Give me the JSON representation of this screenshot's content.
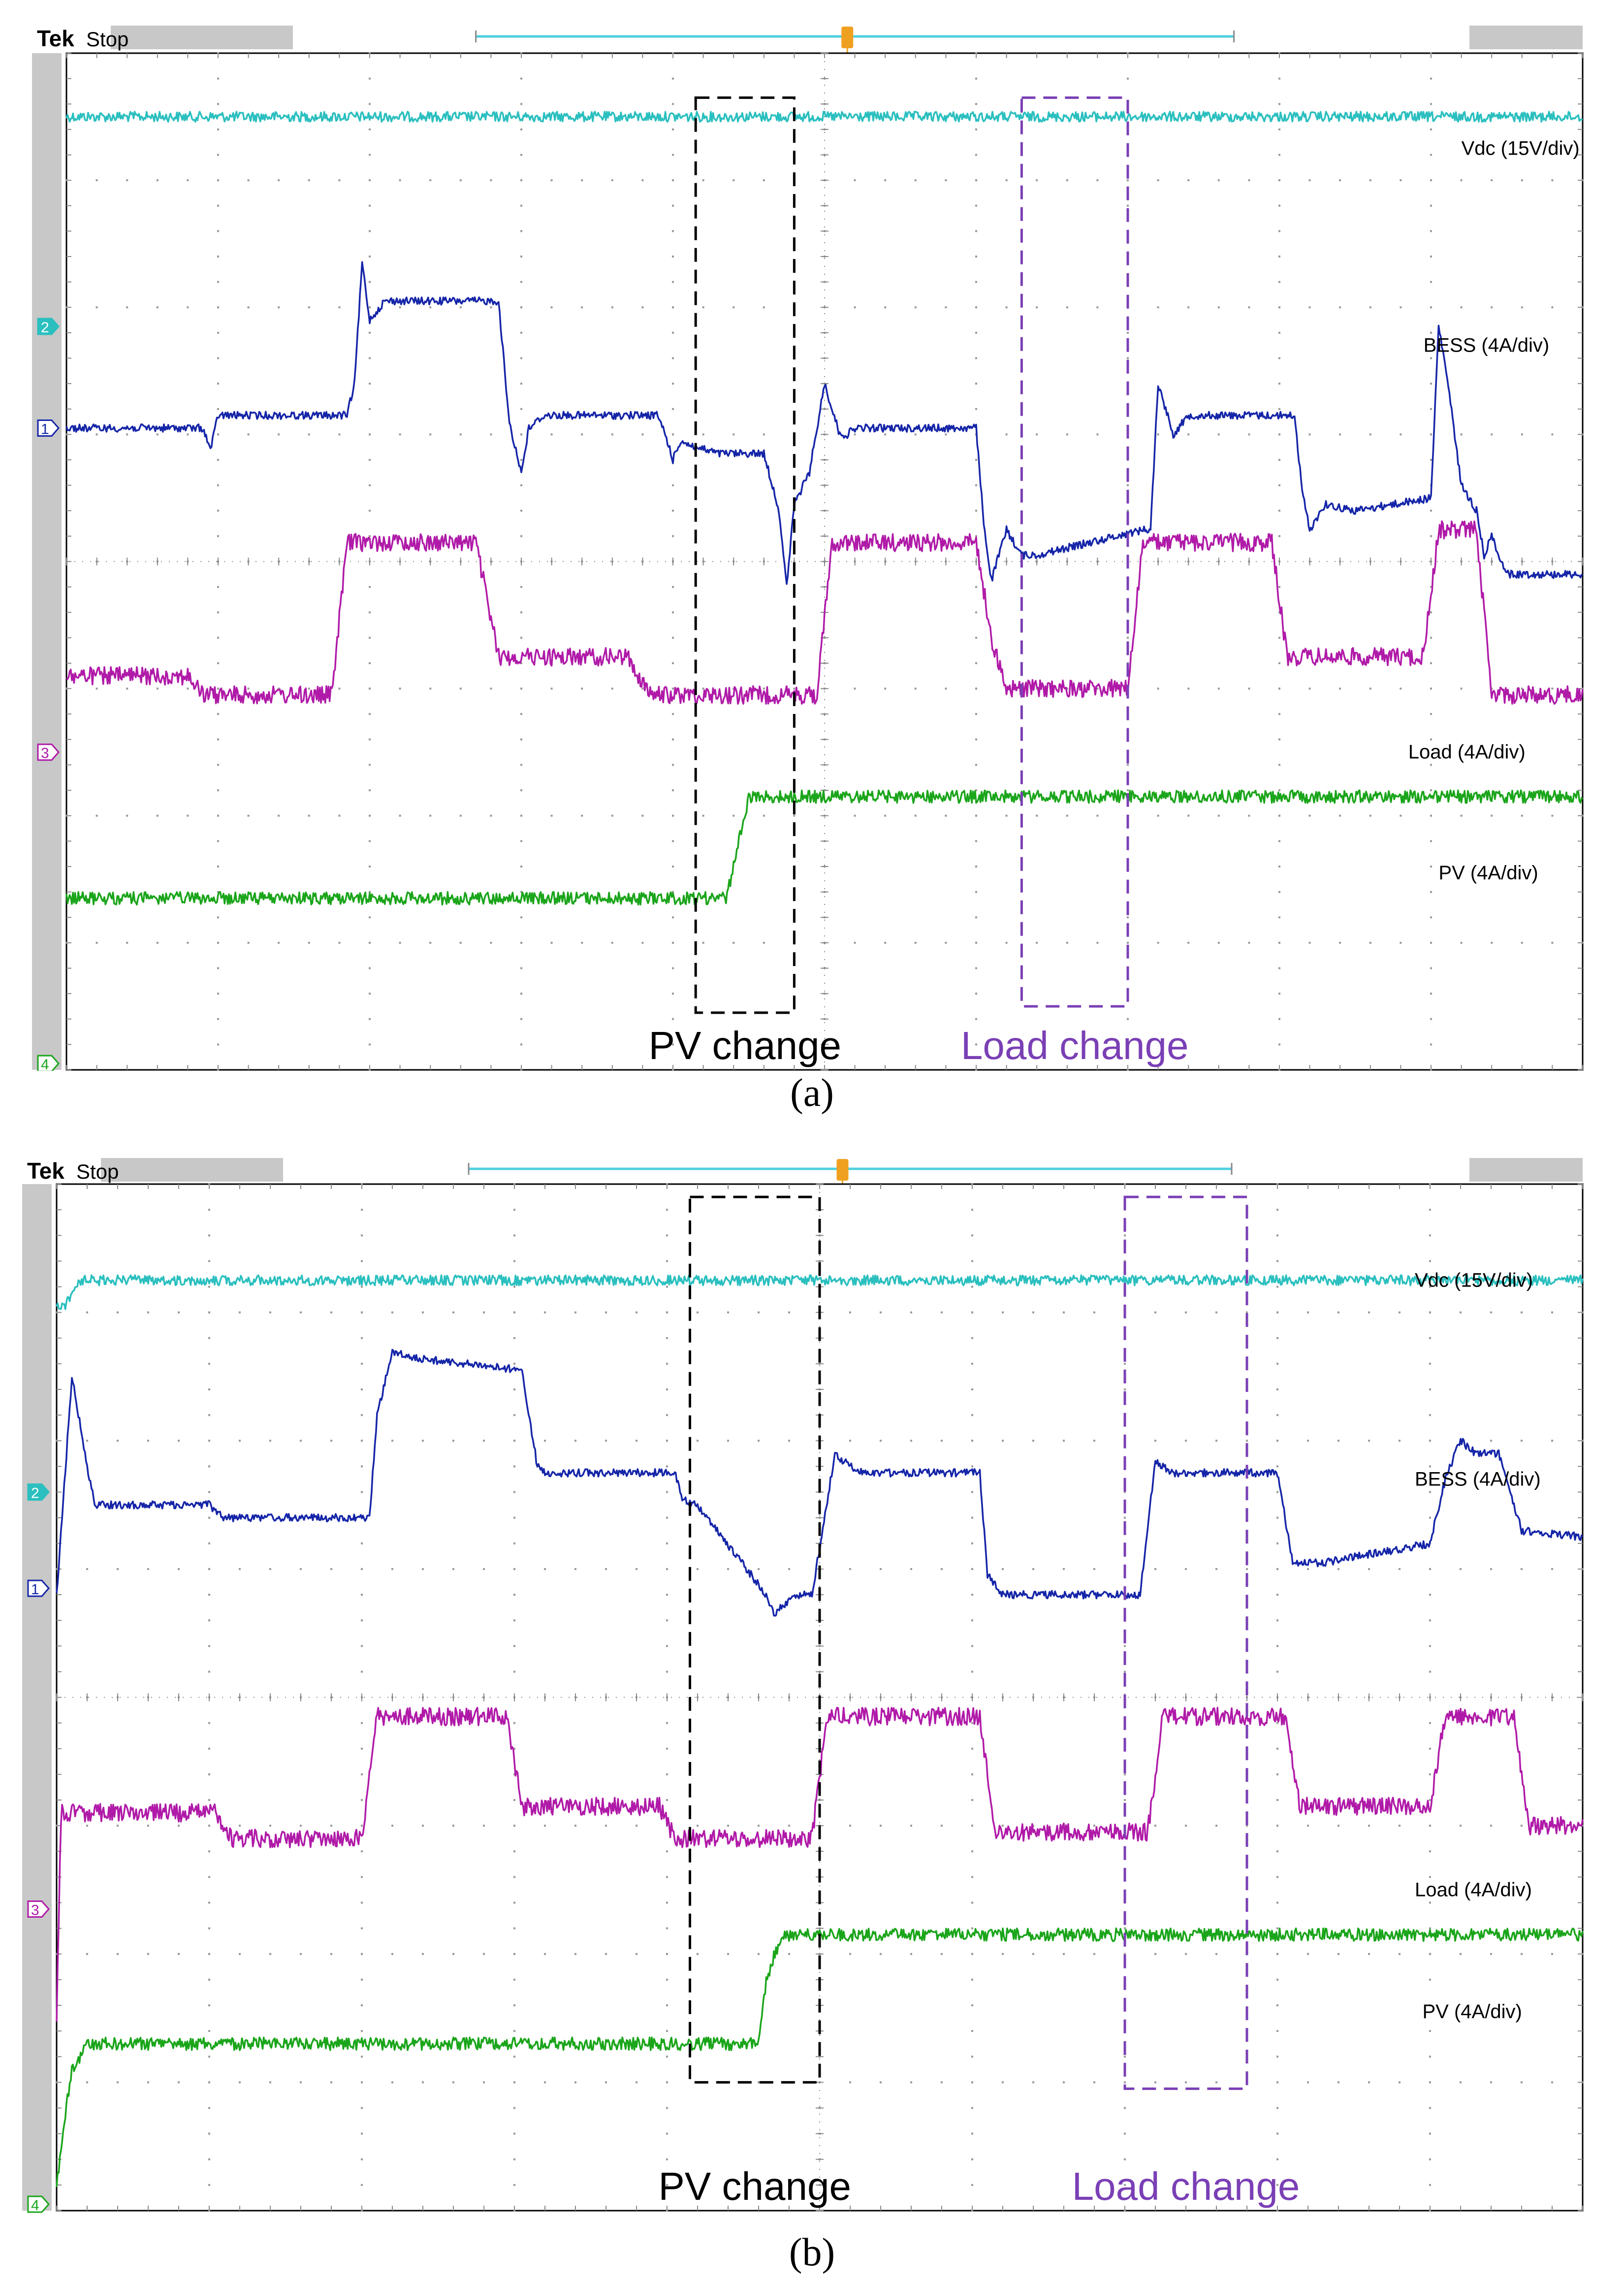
{
  "colors": {
    "vdc": "#2bbfbf",
    "bess": "#1525a8",
    "load": "#b01aa8",
    "pv": "#1aa51a",
    "pv_box": "#000000",
    "load_box": "#7a3fb5",
    "trigger": "#f0a020",
    "timebar": "#4fd0e0"
  },
  "header": {
    "brand": "Tek",
    "status": "Stop"
  },
  "chart_data": [
    {
      "type": "line",
      "caption": "(a)",
      "x_divisions": 10,
      "y_divisions": 8,
      "series": [
        {
          "name": "Vdc (15V/div)",
          "channel_marker": "2",
          "color": "#2bbfbf",
          "x": [
            0,
            10
          ],
          "y": [
            0.5,
            0.5
          ]
        },
        {
          "name": "BESS (4A/div)",
          "channel_marker": "1",
          "color": "#1525a8",
          "x": [
            0,
            0.9,
            0.95,
            1.0,
            1.85,
            1.9,
            1.95,
            2.0,
            2.1,
            2.3,
            2.85,
            2.92,
            3.0,
            3.05,
            3.15,
            3.25,
            3.9,
            3.95,
            4.0,
            4.05,
            4.15,
            4.3,
            4.5,
            4.6,
            4.7,
            4.75,
            4.8,
            4.9,
            5.0,
            5.1,
            5.15,
            5.2,
            5.4,
            6.0,
            6.05,
            6.1,
            6.2,
            6.3,
            6.4,
            7.1,
            7.15,
            7.2,
            7.3,
            7.4,
            7.6,
            8.1,
            8.15,
            8.2,
            8.3,
            8.5,
            9.0,
            9.05,
            9.1,
            9.2,
            9.3,
            9.35,
            9.4,
            9.5,
            10
          ],
          "y": [
            2.95,
            2.95,
            3.12,
            2.85,
            2.85,
            2.6,
            1.65,
            2.1,
            1.95,
            1.95,
            1.95,
            2.9,
            3.3,
            2.95,
            2.85,
            2.85,
            2.85,
            3.0,
            3.2,
            3.05,
            3.1,
            3.15,
            3.15,
            3.15,
            3.6,
            4.2,
            3.55,
            3.3,
            2.6,
            3.0,
            3.0,
            2.95,
            2.95,
            2.95,
            3.7,
            4.15,
            3.75,
            3.95,
            3.95,
            3.75,
            3.75,
            2.6,
            3.0,
            2.85,
            2.85,
            2.85,
            3.45,
            3.75,
            3.55,
            3.6,
            3.5,
            2.15,
            2.5,
            3.4,
            3.6,
            3.95,
            3.8,
            4.1,
            4.1
          ]
        },
        {
          "name": "Load (4A/div)",
          "channel_marker": "3",
          "color": "#b01aa8",
          "x": [
            0,
            0.8,
            0.9,
            1.75,
            1.85,
            2.7,
            2.85,
            3.7,
            3.85,
            4.8,
            4.95,
            5.05,
            6.0,
            6.1,
            6.2,
            7.0,
            7.1,
            7.95,
            8.05,
            8.95,
            9.05,
            9.3,
            9.4,
            10
          ],
          "y": [
            4.9,
            4.9,
            5.05,
            5.05,
            3.85,
            3.85,
            4.75,
            4.75,
            5.05,
            5.05,
            5.05,
            3.85,
            3.85,
            4.6,
            5.0,
            5.0,
            3.85,
            3.85,
            4.75,
            4.75,
            3.75,
            3.75,
            5.05,
            5.05
          ]
        },
        {
          "name": "PV (4A/div)",
          "channel_marker": "4",
          "color": "#1aa51a",
          "x": [
            0,
            4.35,
            4.4,
            4.5,
            10
          ],
          "y": [
            6.65,
            6.65,
            6.4,
            5.85,
            5.85
          ]
        }
      ],
      "annotations": [
        {
          "label": "PV change",
          "color": "#000000",
          "x_range": [
            4.15,
            4.8
          ],
          "y_range": [
            0.35,
            7.55
          ]
        },
        {
          "label": "Load change",
          "color": "#7a3fb5",
          "x_range": [
            6.3,
            7.0
          ],
          "y_range": [
            0.35,
            7.5
          ]
        }
      ]
    },
    {
      "type": "line",
      "caption": "(b)",
      "x_divisions": 10,
      "y_divisions": 8,
      "series": [
        {
          "name": "Vdc (15V/div)",
          "channel_marker": "2",
          "color": "#2bbfbf",
          "x": [
            0,
            0.05,
            0.15,
            10
          ],
          "y": [
            0.95,
            0.95,
            0.75,
            0.75
          ]
        },
        {
          "name": "BESS (4A/div)",
          "channel_marker": "1",
          "color": "#1525a8",
          "x": [
            0,
            0.03,
            0.1,
            0.2,
            0.25,
            0.3,
            1.0,
            1.1,
            2.05,
            2.1,
            2.2,
            2.3,
            3.05,
            3.15,
            3.2,
            4.05,
            4.1,
            4.2,
            4.65,
            4.7,
            4.85,
            4.95,
            5.1,
            5.2,
            5.3,
            6.05,
            6.1,
            6.2,
            6.5,
            7.1,
            7.2,
            7.3,
            8.0,
            8.1,
            8.3,
            9.0,
            9.1,
            9.2,
            9.3,
            9.45,
            9.6,
            10
          ],
          "y": [
            3.2,
            2.7,
            1.5,
            2.2,
            2.5,
            2.5,
            2.5,
            2.6,
            2.6,
            1.8,
            1.3,
            1.35,
            1.45,
            2.2,
            2.25,
            2.25,
            2.45,
            2.5,
            3.2,
            3.35,
            3.2,
            3.2,
            2.1,
            2.2,
            2.25,
            2.25,
            3.05,
            3.2,
            3.2,
            3.2,
            2.15,
            2.25,
            2.25,
            2.95,
            2.95,
            2.8,
            2.3,
            2.0,
            2.1,
            2.1,
            2.7,
            2.75
          ]
        },
        {
          "name": "Load (4A/div)",
          "channel_marker": "3",
          "color": "#b01aa8",
          "x": [
            0,
            0.03,
            0.1,
            1.05,
            1.15,
            2.0,
            2.1,
            2.95,
            3.05,
            3.95,
            4.05,
            4.95,
            5.05,
            6.05,
            6.15,
            7.15,
            7.25,
            8.05,
            8.15,
            9.0,
            9.1,
            9.55,
            9.65,
            10
          ],
          "y": [
            6.5,
            4.9,
            4.9,
            4.9,
            5.1,
            5.1,
            4.15,
            4.15,
            4.85,
            4.85,
            5.1,
            5.1,
            4.15,
            4.15,
            5.05,
            5.05,
            4.15,
            4.15,
            4.85,
            4.85,
            4.15,
            4.15,
            5.0,
            5.0
          ]
        },
        {
          "name": "PV (4A/div)",
          "channel_marker": "4",
          "color": "#1aa51a",
          "x": [
            0,
            0.05,
            0.1,
            0.2,
            4.6,
            4.65,
            4.75,
            10
          ],
          "y": [
            7.8,
            7.3,
            6.9,
            6.7,
            6.7,
            6.2,
            5.85,
            5.85
          ]
        }
      ],
      "annotations": [
        {
          "label": "PV change",
          "color": "#000000",
          "x_range": [
            4.15,
            5.0
          ],
          "y_range": [
            0.1,
            7.0
          ]
        },
        {
          "label": "Load change",
          "color": "#7a3fb5",
          "x_range": [
            7.0,
            7.8
          ],
          "y_range": [
            0.1,
            7.05
          ]
        }
      ]
    }
  ]
}
